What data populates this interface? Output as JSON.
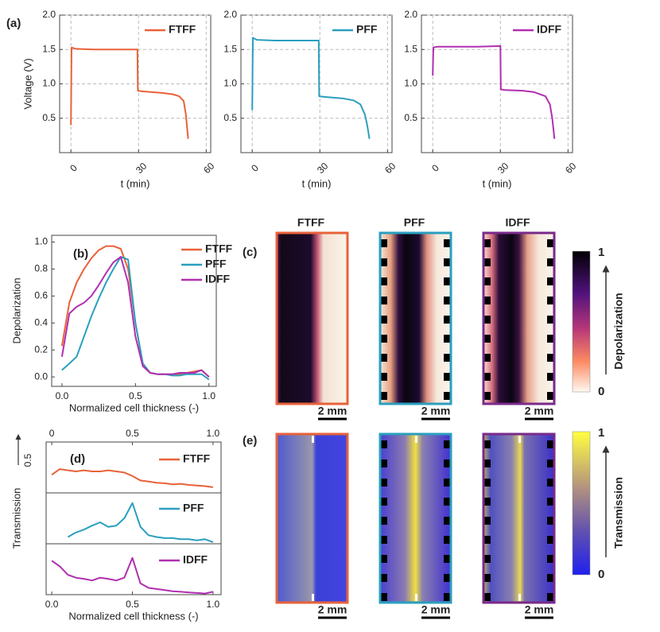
{
  "chart_data": [
    {
      "type": "line",
      "panel": "(a)",
      "ylabel": "Voltage (V)",
      "xlabel": "t (min)",
      "x": [
        0,
        0.3,
        2,
        10,
        20,
        29.5,
        29.7,
        32,
        40,
        45,
        48,
        50,
        51,
        52
      ],
      "series": [
        {
          "name": "FTFF",
          "color": "#e8623a",
          "values": [
            0.4,
            1.53,
            1.51,
            1.5,
            1.5,
            1.5,
            0.9,
            0.89,
            0.87,
            0.85,
            0.82,
            0.75,
            0.55,
            0.2
          ]
        }
      ],
      "xlim": [
        -5,
        62
      ],
      "ylim": [
        0,
        2
      ],
      "xticks": [
        0,
        30,
        60
      ],
      "yticks": [
        0.5,
        {
          "value": 1,
          "label": "1.0"
        },
        1.5,
        {
          "value": 2,
          "label": "2.0"
        }
      ],
      "grid": true,
      "legend": "upper right"
    },
    {
      "type": "line",
      "xlabel": "t (min)",
      "x": [
        0,
        0.3,
        2,
        10,
        20,
        29.5,
        29.7,
        32,
        40,
        45,
        48,
        50,
        51,
        52
      ],
      "series": [
        {
          "name": "PFF",
          "color": "#2a9fbf",
          "values": [
            0.62,
            1.67,
            1.64,
            1.63,
            1.63,
            1.63,
            0.82,
            0.81,
            0.79,
            0.76,
            0.7,
            0.55,
            0.4,
            0.2
          ]
        }
      ],
      "xlim": [
        -5,
        62
      ],
      "ylim": [
        0,
        2
      ],
      "xticks": [
        0,
        30,
        60
      ],
      "yticks": [
        0.5,
        {
          "value": 1,
          "label": "1.0"
        },
        1.5,
        {
          "value": 2,
          "label": "2.0"
        }
      ],
      "grid": true,
      "legend": "upper right"
    },
    {
      "type": "line",
      "xlabel": "t (min)",
      "x": [
        0,
        0.3,
        2,
        10,
        20,
        30,
        30.2,
        32,
        40,
        45,
        50,
        52,
        53,
        54
      ],
      "series": [
        {
          "name": "IDFF",
          "color": "#b02fb0",
          "values": [
            1.12,
            1.53,
            1.54,
            1.54,
            1.54,
            1.55,
            0.92,
            0.91,
            0.9,
            0.88,
            0.82,
            0.7,
            0.5,
            0.2
          ]
        }
      ],
      "xlim": [
        -5,
        62
      ],
      "ylim": [
        0,
        2
      ],
      "xticks": [
        0,
        30,
        60
      ],
      "yticks": [
        0.5,
        {
          "value": 1,
          "label": "1.0"
        },
        1.5,
        {
          "value": 2,
          "label": "2.0"
        }
      ],
      "grid": true,
      "legend": "upper right"
    },
    {
      "type": "line",
      "panel": "(b)",
      "ylabel": "Depolarization",
      "xlabel": "Normalized cell thickness (-)",
      "x": [
        0,
        0.05,
        0.1,
        0.15,
        0.2,
        0.25,
        0.3,
        0.35,
        0.4,
        0.45,
        0.5,
        0.55,
        0.6,
        0.65,
        0.7,
        0.75,
        0.8,
        0.85,
        0.9,
        0.95,
        1.0
      ],
      "series": [
        {
          "name": "FTFF",
          "color": "#e8623a",
          "values": [
            0.23,
            0.55,
            0.7,
            0.8,
            0.88,
            0.94,
            0.97,
            0.97,
            0.95,
            0.8,
            0.4,
            0.1,
            0.03,
            0.02,
            0.02,
            0.02,
            0.02,
            0.03,
            0.04,
            0.05,
            0.0
          ]
        },
        {
          "name": "PFF",
          "color": "#2a9fbf",
          "values": [
            0.05,
            0.1,
            0.15,
            0.3,
            0.45,
            0.58,
            0.7,
            0.8,
            0.89,
            0.87,
            0.4,
            0.1,
            0.03,
            0.02,
            0.02,
            0.01,
            0.01,
            0.02,
            0.02,
            0.02,
            -0.02
          ]
        },
        {
          "name": "IDFF",
          "color": "#b02fb0",
          "values": [
            0.15,
            0.47,
            0.52,
            0.55,
            0.6,
            0.68,
            0.77,
            0.85,
            0.89,
            0.7,
            0.3,
            0.08,
            0.03,
            0.02,
            0.02,
            0.02,
            0.03,
            0.03,
            0.03,
            0.05,
            0.0
          ]
        }
      ],
      "xlim": [
        -0.07,
        1.05
      ],
      "ylim": [
        -0.07,
        1.05
      ],
      "xticks": [
        {
          "value": 0,
          "label": "0.0"
        },
        0.5,
        {
          "value": 1,
          "label": "1.0"
        }
      ],
      "yticks": [
        {
          "value": 0,
          "label": "0.0"
        },
        0.2,
        0.4,
        0.6,
        0.8,
        {
          "value": 1,
          "label": "1.0"
        }
      ],
      "grid": false,
      "legend": "upper right"
    },
    {
      "type": "line",
      "panel": "(d)",
      "xaxis": "top",
      "y_scale_bar": 0.5,
      "x": [
        0,
        0.05,
        0.1,
        0.15,
        0.2,
        0.25,
        0.3,
        0.35,
        0.4,
        0.45,
        0.5,
        0.55,
        0.6,
        0.65,
        0.7,
        0.75,
        0.8,
        0.85,
        0.9,
        0.95,
        1.0
      ],
      "series": [
        {
          "name": "FTFF",
          "color": "#e8623a",
          "values": [
            0.32,
            0.42,
            0.4,
            0.38,
            0.4,
            0.38,
            0.38,
            0.4,
            0.38,
            0.36,
            0.3,
            0.22,
            0.2,
            0.18,
            0.17,
            0.15,
            0.16,
            0.14,
            0.13,
            0.12,
            0.1
          ]
        }
      ],
      "xlim": [
        -0.035,
        1.05
      ],
      "ylim": [
        0,
        0.9
      ],
      "xticks": [
        0,
        0.5,
        {
          "value": 1,
          "label": "1.0"
        }
      ],
      "grid": false,
      "legend": "upper right"
    },
    {
      "type": "line",
      "ylabel": "Transmission",
      "x": [
        0,
        0.05,
        0.1,
        0.15,
        0.2,
        0.25,
        0.3,
        0.35,
        0.4,
        0.45,
        0.5,
        0.55,
        0.6,
        0.65,
        0.7,
        0.75,
        0.8,
        0.85,
        0.9,
        0.95,
        1.0
      ],
      "series": [
        {
          "name": "PFF",
          "color": "#2a9fbf",
          "values": [
            null,
            null,
            0.12,
            0.2,
            0.25,
            0.32,
            0.38,
            0.3,
            0.32,
            0.45,
            0.72,
            0.3,
            0.15,
            0.12,
            0.1,
            0.1,
            0.08,
            0.08,
            0.06,
            0.08,
            0.03
          ]
        }
      ],
      "xlim": [
        -0.035,
        1.05
      ],
      "ylim": [
        0,
        0.9
      ],
      "grid": false,
      "legend": "upper right"
    },
    {
      "type": "line",
      "xlabel": "Normalized cell thickness (-)",
      "x": [
        0,
        0.05,
        0.1,
        0.15,
        0.2,
        0.25,
        0.3,
        0.35,
        0.4,
        0.45,
        0.5,
        0.55,
        0.6,
        0.65,
        0.7,
        0.75,
        0.8,
        0.85,
        0.9,
        0.95,
        1.0
      ],
      "series": [
        {
          "name": "IDFF",
          "color": "#b02fb0",
          "values": [
            0.6,
            0.5,
            0.35,
            0.3,
            0.28,
            0.25,
            0.3,
            0.28,
            0.25,
            0.3,
            0.65,
            0.2,
            0.12,
            0.1,
            0.08,
            0.06,
            0.05,
            0.04,
            0.03,
            0.02,
            0.05
          ]
        }
      ],
      "xlim": [
        -0.035,
        1.05
      ],
      "ylim": [
        0,
        0.9
      ],
      "xticks": [
        {
          "value": 0,
          "label": "0.0"
        },
        0.5,
        {
          "value": 1,
          "label": "1.0"
        }
      ],
      "grid": false,
      "legend": "upper right"
    }
  ],
  "images": [
    {
      "panel": "(c)",
      "columns": [
        "FTFF",
        "PFF",
        "IDFF"
      ],
      "scale_bar": "2 mm",
      "colorbar": {
        "top": 1,
        "bottom": 0,
        "label": "Depolarization"
      }
    },
    {
      "panel": "(e)",
      "scale_bar": "2 mm",
      "colorbar": {
        "top": 1,
        "bottom": 0,
        "label": "Transmission"
      }
    }
  ]
}
